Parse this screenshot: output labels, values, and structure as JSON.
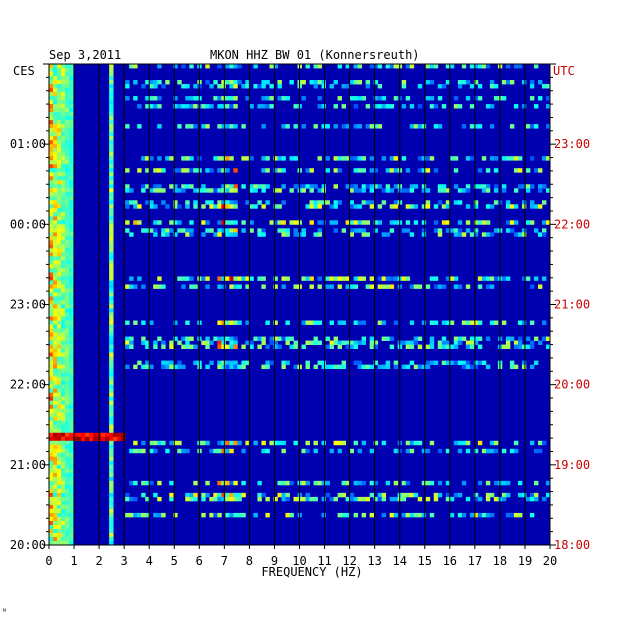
{
  "header": {
    "date": "Sep 3,2011",
    "station": "MKON HHZ BW 01 (Konnersreuth)",
    "left_zone": "CES",
    "right_zone": "UTC"
  },
  "footer": {
    "mark": "ᴺ"
  },
  "colors": {
    "background": "#0000b0",
    "left_text": "#000000",
    "right_text": "#cc0000",
    "frame": "#000000"
  },
  "chart_data": {
    "type": "heatmap",
    "title": "MKON HHZ BW 01 (Konnersreuth)",
    "xlabel": "FREQUENCY (HZ)",
    "ylabel": "",
    "xlim": [
      0,
      20
    ],
    "x_ticks": [
      "0",
      "1",
      "2",
      "3",
      "4",
      "5",
      "6",
      "7",
      "8",
      "9",
      "10",
      "11",
      "12",
      "13",
      "14",
      "15",
      "16",
      "17",
      "18",
      "19",
      "20"
    ],
    "y_ticks_left": [
      "01:00",
      "00:00",
      "23:00",
      "22:00",
      "21:00",
      "20:00"
    ],
    "y_ticks_right": [
      "23:00",
      "22:00",
      "21:00",
      "20:00",
      "19:00",
      "18:00"
    ],
    "time_range_utc_hours": [
      18,
      24
    ],
    "grid": true,
    "colormap": "jet",
    "description_bands": {
      "low_frequency_energy_hz": [
        0,
        1
      ],
      "persistent_line_hz": [
        2.4,
        2.6
      ],
      "strong_burst_utc": "19:15"
    }
  }
}
